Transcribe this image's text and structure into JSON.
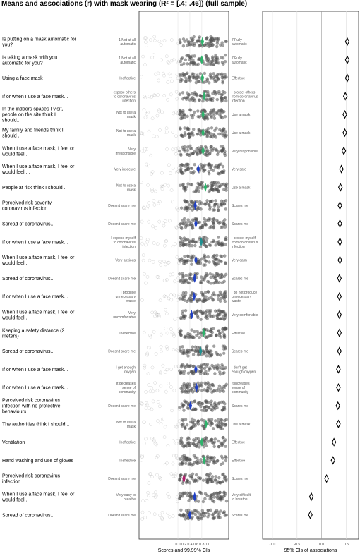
{
  "title": "Means and associations (r) with mask wearing (R² = [.4; .46]) (full sample)",
  "chart_data": [
    {
      "type": "scatter",
      "subtype": "diamond-means-over-jittered-points",
      "xlabel": "Scores and 99.99% CIs",
      "xlim": [
        -1.3,
        1.7
      ],
      "xticks": [
        "0.0",
        "0.2",
        "0.4",
        "0.6",
        "0.8",
        "1.0"
      ],
      "grid": true,
      "colors": {
        "green": "#2db36b",
        "teal": "#1f8f8f",
        "blue": "#1f3fc4",
        "magenta": "#b01d6b",
        "points": "#555555"
      },
      "items": [
        {
          "label": "Is putting on a mask automatic for you?",
          "left": "1 Not at all automatic",
          "right": "7 Fully automatic",
          "mean": 0.82,
          "color": "green"
        },
        {
          "label": "Is taking a mask with you automatic for you?",
          "left": "1 Not at all automatic",
          "right": "7 Fully automatic",
          "mean": 0.8,
          "color": "green"
        },
        {
          "label": "Using a face mask",
          "left": "Ineffective",
          "right": "Effective",
          "mean": 0.82,
          "color": "green"
        },
        {
          "label": "If or when I use a face mask...",
          "left": "I expose others to coronavirus infection",
          "right": "I protect others from coronavirus infection",
          "mean": 0.88,
          "color": "green"
        },
        {
          "label": "In the indoors spaces I visit, people on the site think I should...",
          "left": "Not to use a mask",
          "right": "Use a mask",
          "mean": 0.84,
          "color": "green"
        },
        {
          "label": "My family and friends think I should ..",
          "left": "Not to use a mask",
          "right": "Use a mask",
          "mean": 0.84,
          "color": "green"
        },
        {
          "label": "When I use a face mask, I feel or would feel ..",
          "left": "Very irresponsible",
          "right": "Very responsible",
          "mean": 0.84,
          "color": "green"
        },
        {
          "label": "When I use a face mask, I feel or would feel ...",
          "left": "Very insecure",
          "right": "Very safe",
          "mean": 0.68,
          "color": "blue"
        },
        {
          "label": "People at risk think I should ..",
          "left": "Not to use a mask",
          "right": "Use a mask",
          "mean": 0.92,
          "color": "green"
        },
        {
          "label": "Perceived risk severity coronavirus infection",
          "left": "Doesn't scare me",
          "right": "Scares me",
          "mean": 0.58,
          "color": "blue"
        },
        {
          "label": "Spread of coronavirus...",
          "left": "Doesn't scare me",
          "right": "Scares me",
          "mean": 0.6,
          "color": "blue"
        },
        {
          "label": "If or when I use a face mask...",
          "left": "I expose myself to coronavirus infection",
          "right": "I protect myself from coronavirus infection",
          "mean": 0.78,
          "color": "teal"
        },
        {
          "label": "When I use a face mask, I feel or would feel ..",
          "left": "Very anxious",
          "right": "Very calm",
          "mean": 0.6,
          "color": "blue"
        },
        {
          "label": "Spread of coronavirus...",
          "left": "Doesn't scare me",
          "right": "Scares me",
          "mean": 0.56,
          "color": "blue"
        },
        {
          "label": "If or when I use a face mask...",
          "left": "I produce unnecessary waste",
          "right": "I do not produce unnecessary waste",
          "mean": 0.54,
          "color": "blue"
        },
        {
          "label": "When I use a face mask, I feel or would feel ..",
          "left": "Very uncomfortable",
          "right": "Very comfortable",
          "mean": 0.46,
          "color": "blue"
        },
        {
          "label": "Keeping a safety distance (2 meters)",
          "left": "Ineffective",
          "right": "Effective",
          "mean": 0.86,
          "color": "green"
        },
        {
          "label": "Spread of coronavirus...",
          "left": "Doesn't scare me",
          "right": "Scares me",
          "mean": 0.76,
          "color": "teal"
        },
        {
          "label": "If or when I use a face mask...",
          "left": "I get enough oxygen",
          "right": "I don't get enough oxygen",
          "mean": 0.6,
          "color": "blue"
        },
        {
          "label": "If or when I use a face mask...",
          "left": "It decreases sense of community",
          "right": "It increases sense of community",
          "mean": 0.62,
          "color": "blue"
        },
        {
          "label": "Perceived risk coronavirus infection with no protective behaviours",
          "left": "Doesn't scare me",
          "right": "Scares me",
          "mean": 0.42,
          "color": "blue"
        },
        {
          "label": "The authorities think I should ..",
          "left": "Not to use a mask",
          "right": "Use a mask",
          "mean": 0.94,
          "color": "green"
        },
        {
          "label": "Ventilation",
          "left": "Ineffective",
          "right": "Effective",
          "mean": 0.8,
          "color": "green"
        },
        {
          "label": "Hand washing and use of gloves",
          "left": "Ineffective",
          "right": "Effective",
          "mean": 0.88,
          "color": "green"
        },
        {
          "label": "Perceived risk coronavirus infection",
          "left": "Doesn't scare me",
          "right": "Scares me",
          "mean": 0.2,
          "color": "magenta"
        },
        {
          "label": "When I use a face mask, I feel or would feel ..",
          "left": "Very easy to breathe",
          "right": "Very difficult to breathe",
          "mean": 0.56,
          "color": "blue"
        },
        {
          "label": "Spread of coronavirus...",
          "left": "Doesn't scare me",
          "right": "Scares me",
          "mean": 0.4,
          "color": "blue"
        }
      ]
    },
    {
      "type": "scatter",
      "subtype": "confidence-interval-diamonds",
      "xlabel": "95% CIs of associations",
      "xlim": [
        -1.2,
        0.75
      ],
      "xticks": [
        "-1.0",
        "-0.5",
        "0.0",
        "0.5",
        "1.0"
      ],
      "grid": true,
      "values": [
        0.52,
        0.52,
        0.52,
        0.48,
        0.47,
        0.47,
        0.45,
        0.4,
        0.38,
        0.37,
        0.37,
        0.37,
        0.37,
        0.36,
        0.36,
        0.36,
        0.36,
        0.36,
        0.34,
        0.34,
        0.33,
        0.34,
        0.25,
        0.23,
        0.1,
        -0.21,
        -0.23
      ]
    }
  ]
}
